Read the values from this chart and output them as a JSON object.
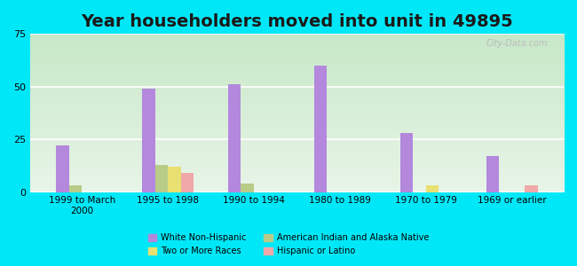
{
  "title": "Year householders moved into unit in 49895",
  "categories": [
    "1999 to March\n2000",
    "1995 to 1998",
    "1990 to 1994",
    "1980 to 1989",
    "1970 to 1979",
    "1969 or earlier"
  ],
  "series": {
    "White Non-Hispanic": [
      22,
      49,
      51,
      60,
      28,
      17
    ],
    "American Indian and Alaska Native": [
      3,
      13,
      4,
      0,
      0,
      0
    ],
    "Two or More Races": [
      0,
      12,
      0,
      0,
      3,
      0
    ],
    "Hispanic or Latino": [
      0,
      9,
      0,
      0,
      0,
      3
    ]
  },
  "colors": {
    "White Non-Hispanic": "#b388dd",
    "American Indian and Alaska Native": "#b8cc88",
    "Two or More Races": "#e8e070",
    "Hispanic or Latino": "#f0a8a8"
  },
  "bar_width": 0.15,
  "ylim": [
    0,
    75
  ],
  "yticks": [
    0,
    25,
    50,
    75
  ],
  "background_color": "#00e8f8",
  "watermark": "City-Data.com",
  "title_fontsize": 14,
  "legend_order": [
    "White Non-Hispanic",
    "Two or More Races",
    "American Indian and Alaska Native",
    "Hispanic or Latino"
  ]
}
